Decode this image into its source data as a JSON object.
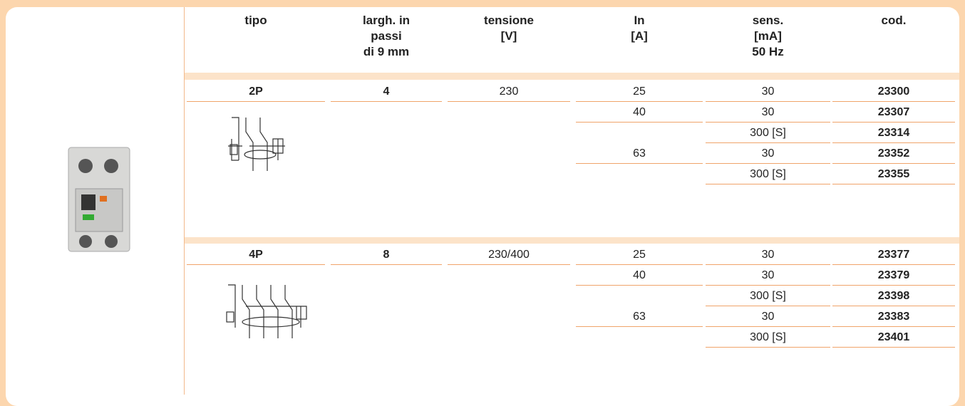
{
  "table": {
    "header": [
      [
        "tipo"
      ],
      [
        "largh. in",
        "passi",
        "di 9 mm"
      ],
      [
        "tensione",
        "[V]"
      ],
      [
        "In",
        "[A]"
      ],
      [
        "sens.",
        "[mA]",
        "50 Hz"
      ],
      [
        "cod."
      ]
    ],
    "groups": [
      {
        "tipo": "2P",
        "passi": "4",
        "tensione": "230",
        "rows": [
          {
            "in": "25",
            "sens": "30",
            "cod": "23300"
          },
          {
            "in": "40",
            "sens": "30",
            "cod": "23307"
          },
          {
            "in": null,
            "sens": "300 [S]",
            "cod": "23314"
          },
          {
            "in": "63",
            "sens": "30",
            "cod": "23352"
          },
          {
            "in": null,
            "sens": "300 [S]",
            "cod": "23355"
          }
        ]
      },
      {
        "tipo": "4P",
        "passi": "8",
        "tensione": "230/400",
        "rows": [
          {
            "in": "25",
            "sens": "30",
            "cod": "23377"
          },
          {
            "in": "40",
            "sens": "30",
            "cod": "23379"
          },
          {
            "in": null,
            "sens": "300 [S]",
            "cod": "23398"
          },
          {
            "in": "63",
            "sens": "30",
            "cod": "23383"
          },
          {
            "in": null,
            "sens": "300 [S]",
            "cod": "23401"
          }
        ]
      }
    ]
  }
}
